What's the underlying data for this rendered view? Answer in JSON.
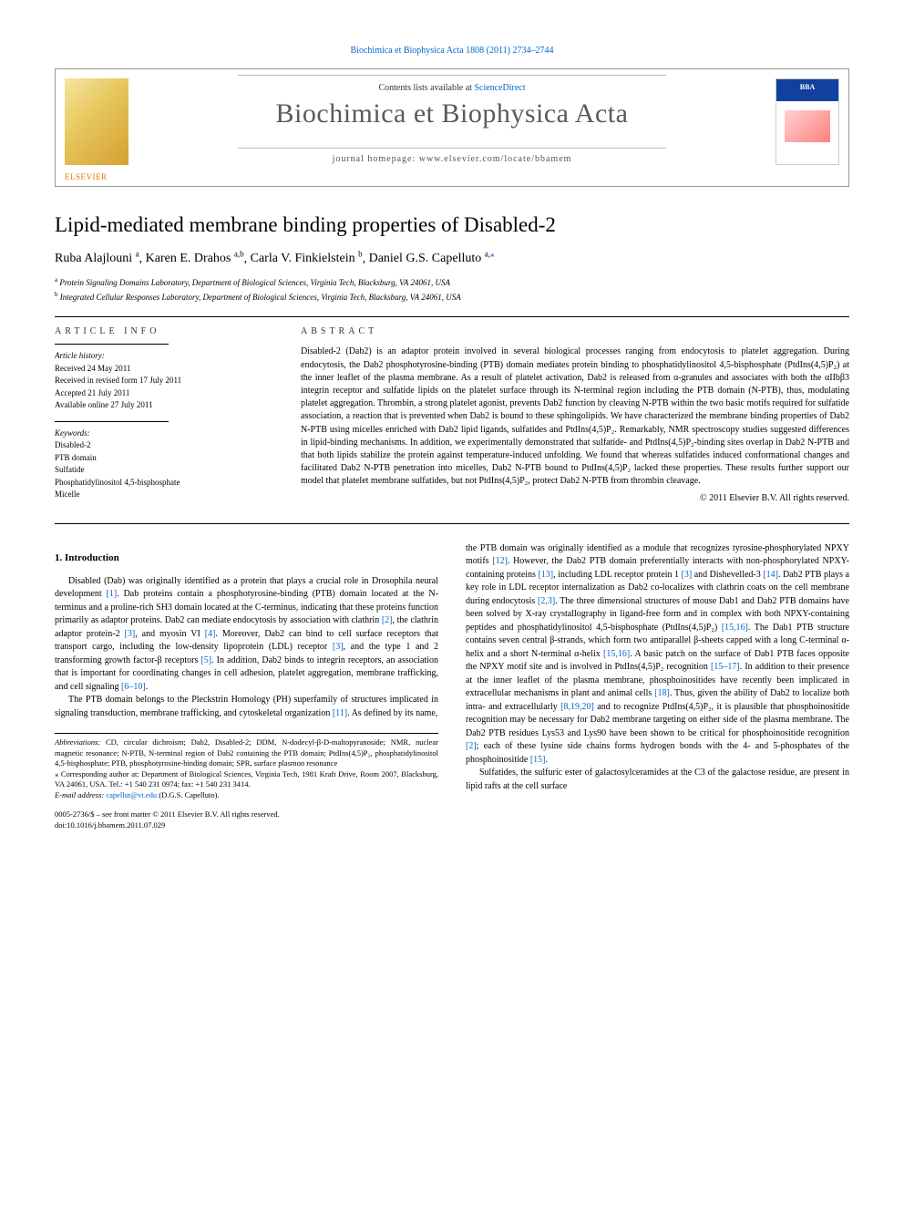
{
  "header_citation": "Biochimica et Biophysica Acta 1808 (2011) 2734–2744",
  "banner": {
    "contents_prefix": "Contents lists available at ",
    "contents_link": "ScienceDirect",
    "journal_name": "Biochimica et Biophysica Acta",
    "homepage_prefix": "journal homepage: ",
    "homepage": "www.elsevier.com/locate/bbamem",
    "publisher": "ELSEVIER",
    "cover_label": "BBA"
  },
  "title": "Lipid-mediated membrane binding properties of Disabled-2",
  "authors": [
    {
      "name": "Ruba Alajlouni",
      "affil": "a"
    },
    {
      "name": "Karen E. Drahos",
      "affil": "a,b"
    },
    {
      "name": "Carla V. Finkielstein",
      "affil": "b"
    },
    {
      "name": "Daniel G.S. Capelluto",
      "affil": "a,",
      "corr": true
    }
  ],
  "affiliations": {
    "a": "Protein Signaling Domains Laboratory, Department of Biological Sciences, Virginia Tech, Blacksburg, VA 24061, USA",
    "b": "Integrated Cellular Responses Laboratory, Department of Biological Sciences, Virginia Tech, Blacksburg, VA 24061, USA"
  },
  "article_info": {
    "heading": "ARTICLE INFO",
    "history_label": "Article history:",
    "history": [
      "Received 24 May 2011",
      "Received in revised form 17 July 2011",
      "Accepted 21 July 2011",
      "Available online 27 July 2011"
    ],
    "keywords_label": "Keywords:",
    "keywords": [
      "Disabled-2",
      "PTB domain",
      "Sulfatide",
      "Phosphatidylinositol 4,5-bisphosphate",
      "Micelle"
    ]
  },
  "abstract": {
    "heading": "ABSTRACT",
    "text": "Disabled-2 (Dab2) is an adaptor protein involved in several biological processes ranging from endocytosis to platelet aggregation. During endocytosis, the Dab2 phosphotyrosine-binding (PTB) domain mediates protein binding to phosphatidylinositol 4,5-bisphosphate (PtdIns(4,5)P₂) at the inner leaflet of the plasma membrane. As a result of platelet activation, Dab2 is released from α-granules and associates with both the αIIbβ3 integrin receptor and sulfatide lipids on the platelet surface through its N-terminal region including the PTB domain (N-PTB), thus, modulating platelet aggregation. Thrombin, a strong platelet agonist, prevents Dab2 function by cleaving N-PTB within the two basic motifs required for sulfatide association, a reaction that is prevented when Dab2 is bound to these sphingolipids. We have characterized the membrane binding properties of Dab2 N-PTB using micelles enriched with Dab2 lipid ligands, sulfatides and PtdIns(4,5)P₂. Remarkably, NMR spectroscopy studies suggested differences in lipid-binding mechanisms. In addition, we experimentally demonstrated that sulfatide- and PtdIns(4,5)P₂-binding sites overlap in Dab2 N-PTB and that both lipids stabilize the protein against temperature-induced unfolding. We found that whereas sulfatides induced conformational changes and facilitated Dab2 N-PTB penetration into micelles, Dab2 N-PTB bound to PtdIns(4,5)P₂ lacked these properties. These results further support our model that platelet membrane sulfatides, but not PtdIns(4,5)P₂, protect Dab2 N-PTB from thrombin cleavage.",
    "copyright": "© 2011 Elsevier B.V. All rights reserved."
  },
  "body": {
    "section1_heading": "1. Introduction",
    "left_p1": "Disabled (Dab) was originally identified as a protein that plays a crucial role in Drosophila neural development [1]. Dab proteins contain a phosphotyrosine-binding (PTB) domain located at the N-terminus and a proline-rich SH3 domain located at the C-terminus, indicating that these proteins function primarily as adaptor proteins. Dab2 can mediate endocytosis by association with clathrin [2], the clathrin adaptor protein-2 [3], and myosin VI [4]. Moreover, Dab2 can bind to cell surface receptors that transport cargo, including the low-density lipoprotein (LDL) receptor [3], and the type 1 and 2 transforming growth factor-β receptors [5]. In addition, Dab2 binds to integrin receptors, an association that is important for coordinating changes in cell adhesion, platelet aggregation, membrane trafficking, and cell signaling [6–10].",
    "left_p2": "The PTB domain belongs to the Pleckstrin Homology (PH) superfamily of structures implicated in signaling transduction, membrane trafficking, and cytoskeletal organization [11]. As defined by its name,",
    "right_p1": "the PTB domain was originally identified as a module that recognizes tyrosine-phosphorylated NPXY motifs [12]. However, the Dab2 PTB domain preferentially interacts with non-phosphorylated NPXY-containing proteins [13], including LDL receptor protein 1 [3] and Dishevelled-3 [14]. Dab2 PTB plays a key role in LDL receptor internalization as Dab2 co-localizes with clathrin coats on the cell membrane during endocytosis [2,3]. The three dimensional structures of mouse Dab1 and Dab2 PTB domains have been solved by X-ray crystallography in ligand-free form and in complex with both NPXY-containing peptides and phosphatidylinositol 4,5-bisphosphate (PtdIns(4,5)P₂) [15,16]. The Dab1 PTB structure contains seven central β-strands, which form two antiparallel β-sheets capped with a long C-terminal α-helix and a short N-terminal α-helix [15,16]. A basic patch on the surface of Dab1 PTB faces opposite the NPXY motif site and is involved in PtdIns(4,5)P₂ recognition [15–17]. In addition to their presence at the inner leaflet of the plasma membrane, phosphoinositides have recently been implicated in extracellular mechanisms in plant and animal cells [18]. Thus, given the ability of Dab2 to localize both intra- and extracellularly [8,19,20] and to recognize PtdIns(4,5)P₂, it is plausible that phosphoinositide recognition may be necessary for Dab2 membrane targeting on either side of the plasma membrane. The Dab2 PTB residues Lys53 and Lys90 have been shown to be critical for phosphoinositide recognition [2]; each of these lysine side chains forms hydrogen bonds with the 4- and 5-phosphates of the phosphoinositide [15].",
    "right_p2": "Sulfatides, the sulfuric ester of galactosylceramides at the C3 of the galactose residue, are present in lipid rafts at the cell surface"
  },
  "footnotes": {
    "abbr_label": "Abbreviations:",
    "abbr_text": " CD, circular dichroism; Dab2, Disabled-2; DDM, N-dodecyl-β-D-maltopyranoside; NMR, nuclear magnetic resonance; N-PTB, N-terminal region of Dab2 containing the PTB domain; PtdIns(4,5)P₂, phosphatidylinositol 4,5-bisphosphate; PTB, phosphotyrosine-binding domain; SPR, surface plasmon resonance",
    "corr_text": "⁎ Corresponding author at: Department of Biological Sciences, Virginia Tech, 1981 Kraft Drive, Room 2007, Blacksburg, VA 24061, USA. Tel.: +1 540 231 0974; fax: +1 540 231 3414.",
    "email_label": "E-mail address:",
    "email": "capellut@vt.edu",
    "email_person": " (D.G.S. Capelluto)."
  },
  "footer": {
    "front_matter": "0005-2736/$ – see front matter © 2011 Elsevier B.V. All rights reserved.",
    "doi": "doi:10.1016/j.bbamem.2011.07.029"
  },
  "colors": {
    "link": "#0066cc",
    "text": "#000000",
    "banner_border": "#999999",
    "elsevier": "#e67a00"
  }
}
